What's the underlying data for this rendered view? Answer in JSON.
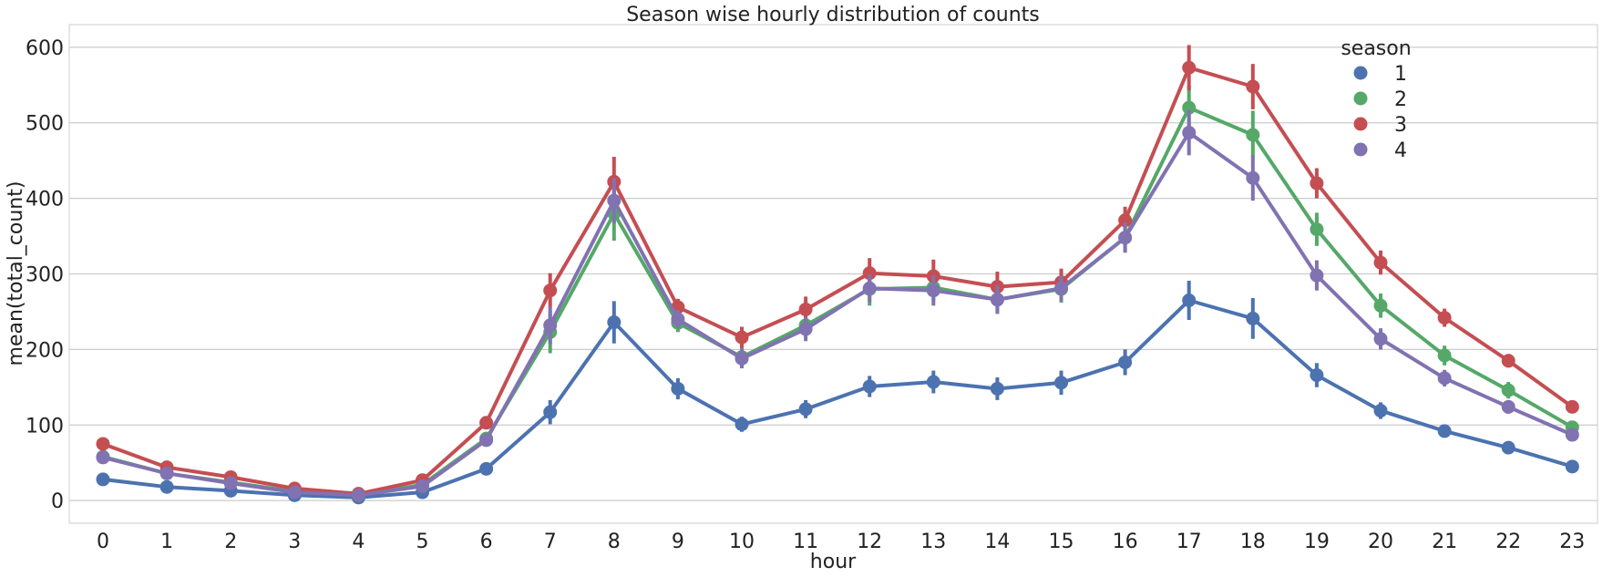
{
  "chart_data": {
    "type": "line",
    "title": "Season wise hourly distribution of counts",
    "xlabel": "hour",
    "ylabel": "mean(total_count)",
    "categories": [
      "0",
      "1",
      "2",
      "3",
      "4",
      "5",
      "6",
      "7",
      "8",
      "9",
      "10",
      "11",
      "12",
      "13",
      "14",
      "15",
      "16",
      "17",
      "18",
      "19",
      "20",
      "21",
      "22",
      "23"
    ],
    "ylim": [
      -30,
      630
    ],
    "yticks": [
      0,
      100,
      200,
      300,
      400,
      500,
      600
    ],
    "grid": true,
    "legend": {
      "title": "season",
      "position": "top-right"
    },
    "series": [
      {
        "name": "1",
        "color": "#4c72b0",
        "values": [
          28,
          18,
          13,
          7,
          4,
          11,
          42,
          117,
          236,
          148,
          101,
          121,
          151,
          157,
          148,
          156,
          183,
          265,
          241,
          166,
          119,
          92,
          70,
          45
        ],
        "error": [
          4,
          3,
          3,
          2,
          2,
          3,
          5,
          16,
          28,
          14,
          10,
          12,
          14,
          15,
          15,
          16,
          17,
          26,
          27,
          16,
          11,
          8,
          6,
          5
        ]
      },
      {
        "name": "2",
        "color": "#55a868",
        "values": [
          58,
          36,
          24,
          12,
          7,
          21,
          82,
          223,
          380,
          235,
          190,
          232,
          280,
          282,
          266,
          280,
          348,
          520,
          484,
          359,
          258,
          192,
          146,
          97
        ],
        "error": [
          6,
          5,
          4,
          3,
          2,
          4,
          8,
          28,
          36,
          12,
          14,
          14,
          22,
          18,
          17,
          18,
          19,
          30,
          32,
          22,
          16,
          13,
          11,
          8
        ]
      },
      {
        "name": "3",
        "color": "#c44e52",
        "values": [
          75,
          44,
          31,
          16,
          9,
          27,
          103,
          278,
          422,
          256,
          216,
          253,
          301,
          297,
          283,
          289,
          371,
          573,
          548,
          420,
          315,
          242,
          185,
          124
        ],
        "error": [
          6,
          5,
          4,
          3,
          2,
          4,
          8,
          23,
          33,
          11,
          14,
          17,
          20,
          22,
          20,
          18,
          18,
          30,
          30,
          20,
          16,
          12,
          9,
          7
        ]
      },
      {
        "name": "4",
        "color": "#8172b2",
        "values": [
          57,
          36,
          23,
          11,
          7,
          19,
          80,
          232,
          397,
          240,
          188,
          227,
          281,
          278,
          266,
          281,
          348,
          487,
          427,
          298,
          214,
          162,
          124,
          87
        ],
        "error": [
          5,
          4,
          3,
          2,
          2,
          3,
          8,
          25,
          30,
          12,
          13,
          16,
          18,
          20,
          19,
          17,
          20,
          30,
          30,
          20,
          14,
          11,
          9,
          6
        ]
      }
    ]
  }
}
